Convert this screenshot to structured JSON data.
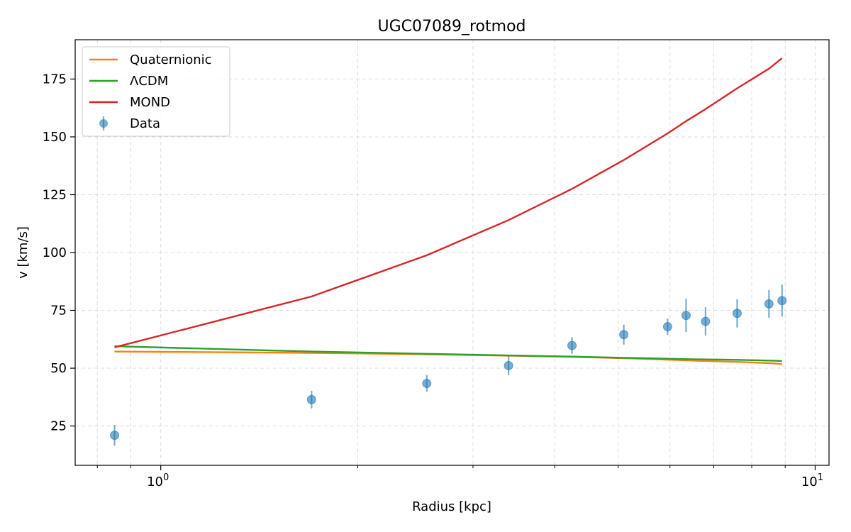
{
  "chart_data": {
    "type": "line",
    "title": "UGC07089_rotmod",
    "xlabel": "Radius [kpc]",
    "ylabel": "v [km/s]",
    "xscale": "log",
    "xlim": [
      0.74,
      10.5
    ],
    "ylim": [
      8,
      192
    ],
    "grid": true,
    "legend_position": "top-left",
    "x_ticks": [
      {
        "value": 1,
        "base": "10",
        "exp": "0"
      },
      {
        "value": 10,
        "base": "10",
        "exp": "1"
      }
    ],
    "y_ticks": [
      25,
      50,
      75,
      100,
      125,
      150,
      175
    ],
    "series": [
      {
        "name": "Quaternionic",
        "type": "line",
        "color": "#ff7f0e",
        "x": [
          0.85,
          1.7,
          2.55,
          3.4,
          4.25,
          5.1,
          5.95,
          6.35,
          6.8,
          7.6,
          8.5,
          8.9
        ],
        "y": [
          57.2,
          56.6,
          56.0,
          55.4,
          54.9,
          54.3,
          53.7,
          53.4,
          53.1,
          52.7,
          52.2,
          51.8
        ]
      },
      {
        "name": "ΛCDM",
        "type": "line",
        "color": "#2ca02c",
        "x": [
          0.85,
          1.7,
          2.55,
          3.4,
          4.25,
          5.1,
          5.95,
          6.35,
          6.8,
          7.6,
          8.5,
          8.9
        ],
        "y": [
          59.5,
          57.2,
          56.2,
          55.5,
          55.0,
          54.5,
          54.1,
          53.9,
          53.8,
          53.6,
          53.3,
          53.1
        ]
      },
      {
        "name": "MOND",
        "type": "line",
        "color": "#d62728",
        "x": [
          0.85,
          1.7,
          2.55,
          3.4,
          4.25,
          5.1,
          5.95,
          6.35,
          6.8,
          7.6,
          8.5,
          8.9
        ],
        "y": [
          59.0,
          81.0,
          98.8,
          114.0,
          127.5,
          140.0,
          151.5,
          156.8,
          162.0,
          171.0,
          179.5,
          184.0
        ]
      },
      {
        "name": "Data",
        "type": "scatter",
        "color": "#1f77b4",
        "x": [
          0.85,
          1.7,
          2.55,
          3.4,
          4.25,
          5.1,
          5.95,
          6.35,
          6.8,
          7.6,
          8.5,
          8.9
        ],
        "y": [
          21.0,
          36.4,
          43.4,
          51.1,
          59.8,
          64.5,
          67.9,
          72.8,
          70.2,
          73.7,
          77.8,
          79.2
        ],
        "err": [
          4.5,
          3.8,
          3.6,
          4.2,
          3.6,
          4.3,
          3.5,
          7.2,
          6.1,
          6.1,
          6.0,
          6.9
        ]
      }
    ]
  }
}
